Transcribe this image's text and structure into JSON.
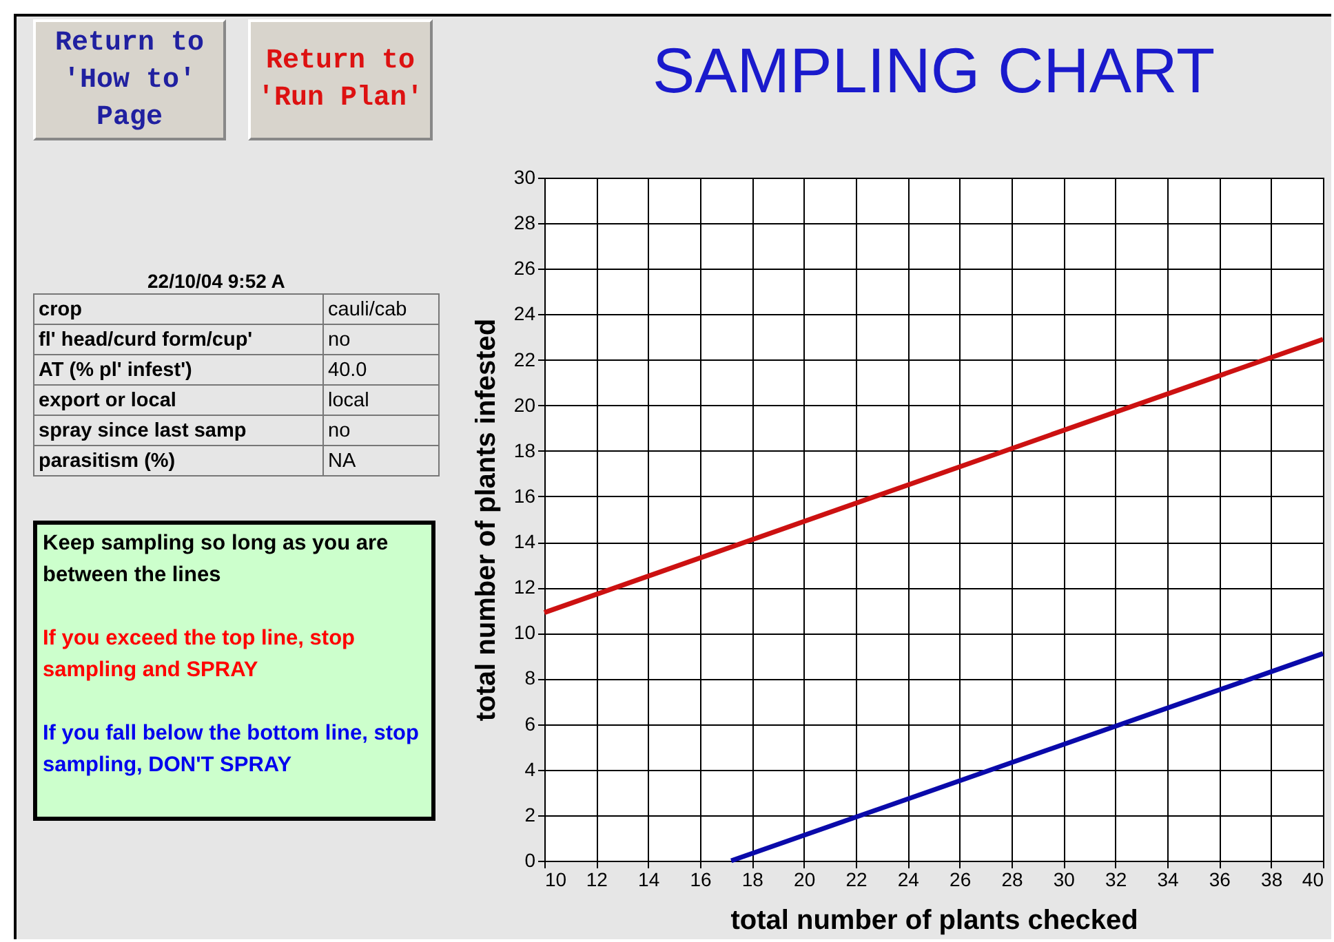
{
  "chart_data": {
    "type": "line",
    "title": "SAMPLING CHART",
    "xlabel": "total number of plants checked",
    "ylabel": "total number of plants infested",
    "xlim": [
      10,
      40
    ],
    "ylim": [
      0,
      30
    ],
    "xticks": [
      10,
      12,
      14,
      16,
      18,
      20,
      22,
      24,
      26,
      28,
      30,
      32,
      34,
      36,
      38,
      40
    ],
    "yticks": [
      0,
      2,
      4,
      6,
      8,
      10,
      12,
      14,
      16,
      18,
      20,
      22,
      24,
      26,
      28,
      30
    ],
    "grid": true,
    "series": [
      {
        "color": "#cc1111",
        "x": [
          10,
          40
        ],
        "values": [
          10.9,
          22.9
        ]
      },
      {
        "color": "#0a0aaa",
        "x": [
          17.2,
          40
        ],
        "values": [
          0,
          9.1
        ]
      }
    ],
    "annotations": [
      "Return to 'How to' Page",
      "Return to 'Run Plan'",
      "22/10/04 9:52 A",
      "crop",
      "cauli/cab",
      "fl' head/curd form/cup'",
      "no",
      "AT (% pl' infest')",
      "40.0",
      "export or local",
      "local",
      "spray since last samp",
      "no",
      "parasitism (%)",
      "NA",
      "Keep sampling so long as you are between the lines",
      "If you exceed the top line, stop sampling and SPRAY",
      "If you fall below the bottom line, stop sampling, DON'T SPRAY"
    ]
  }
}
